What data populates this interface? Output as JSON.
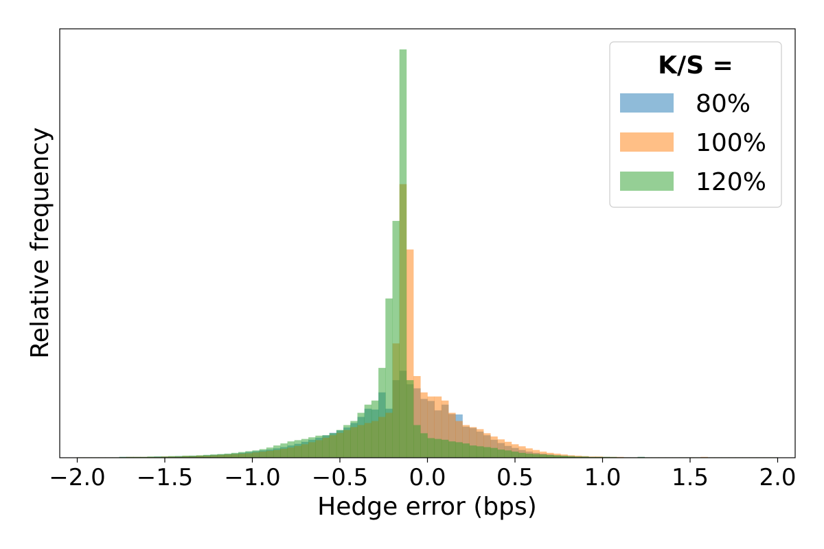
{
  "chart_data": {
    "type": "bar",
    "subtype": "histogram",
    "xlabel": "Hedge error (bps)",
    "ylabel": "Relative frequency",
    "xlim": [
      -2.1,
      2.1
    ],
    "ylim": [
      0,
      1.0
    ],
    "x_ticks": [
      -2.0,
      -1.5,
      -1.0,
      -0.5,
      0.0,
      0.5,
      1.0,
      1.5,
      2.0
    ],
    "x_tick_labels": [
      "−2.0",
      "−1.5",
      "−1.0",
      "−0.5",
      "0.0",
      "0.5",
      "1.0",
      "1.5",
      "2.0"
    ],
    "y_ticks_shown": false,
    "grid": false,
    "bin_width": 0.04,
    "bins_start": -2.0,
    "legend": {
      "title": "K/S =",
      "position": "top-right",
      "entries": [
        "80%",
        "100%",
        "120%"
      ]
    },
    "series": [
      {
        "name": "80%",
        "color": "#1f77b4",
        "opacity": 0.5,
        "values": [
          0.001,
          0.001,
          0.001,
          0.001,
          0.001,
          0.001,
          0.002,
          0.002,
          0.002,
          0.002,
          0.002,
          0.003,
          0.003,
          0.003,
          0.004,
          0.004,
          0.005,
          0.005,
          0.006,
          0.007,
          0.008,
          0.009,
          0.01,
          0.012,
          0.014,
          0.016,
          0.018,
          0.02,
          0.023,
          0.026,
          0.03,
          0.034,
          0.039,
          0.044,
          0.049,
          0.055,
          0.061,
          0.067,
          0.074,
          0.085,
          0.1,
          0.12,
          0.118,
          0.16,
          0.12,
          0.19,
          0.213,
          0.18,
          0.17,
          0.144,
          0.139,
          0.116,
          0.13,
          0.107,
          0.106,
          0.076,
          0.073,
          0.064,
          0.055,
          0.044,
          0.036,
          0.029,
          0.024,
          0.019,
          0.015,
          0.012,
          0.01,
          0.008,
          0.006,
          0.005,
          0.004,
          0.003,
          0.003,
          0.002,
          0.002,
          0.002,
          0.001,
          0.001,
          0.001,
          0.001,
          0.002,
          0.001,
          0.001,
          0.001,
          0.001,
          0.001,
          0.001,
          0.001,
          0.001,
          0.001,
          0.001,
          0.001,
          0.001,
          0.001,
          0.001,
          0.001,
          0.001,
          0.001,
          0.001,
          0.001
        ]
      },
      {
        "name": "100%",
        "color": "#ff7f0e",
        "opacity": 0.5,
        "values": [
          0.001,
          0.001,
          0.001,
          0.001,
          0.001,
          0.001,
          0.001,
          0.002,
          0.002,
          0.002,
          0.002,
          0.002,
          0.003,
          0.003,
          0.003,
          0.004,
          0.004,
          0.005,
          0.005,
          0.006,
          0.007,
          0.008,
          0.009,
          0.01,
          0.011,
          0.013,
          0.015,
          0.017,
          0.019,
          0.022,
          0.025,
          0.029,
          0.033,
          0.038,
          0.043,
          0.049,
          0.055,
          0.061,
          0.068,
          0.075,
          0.08,
          0.085,
          0.09,
          0.1,
          0.11,
          0.28,
          0.67,
          0.51,
          0.2,
          0.16,
          0.15,
          0.15,
          0.14,
          0.11,
          0.09,
          0.08,
          0.075,
          0.07,
          0.06,
          0.052,
          0.045,
          0.039,
          0.033,
          0.028,
          0.023,
          0.019,
          0.015,
          0.012,
          0.01,
          0.008,
          0.006,
          0.005,
          0.004,
          0.003,
          0.003,
          0.002,
          0.002,
          0.002,
          0.001,
          0.001,
          0.001,
          0.001,
          0.001,
          0.001,
          0.001,
          0.001,
          0.001,
          0.001,
          0.001,
          0.002,
          0.001,
          0.001,
          0.001,
          0.001,
          0.001,
          0.001,
          0.001,
          0.001,
          0.001,
          0.001
        ]
      },
      {
        "name": "120%",
        "color": "#2ca02c",
        "opacity": 0.5,
        "values": [
          0.001,
          0.001,
          0.001,
          0.001,
          0.001,
          0.001,
          0.002,
          0.002,
          0.002,
          0.002,
          0.003,
          0.003,
          0.003,
          0.004,
          0.004,
          0.005,
          0.005,
          0.006,
          0.007,
          0.008,
          0.009,
          0.01,
          0.012,
          0.014,
          0.016,
          0.018,
          0.021,
          0.025,
          0.03,
          0.035,
          0.04,
          0.043,
          0.046,
          0.05,
          0.054,
          0.055,
          0.06,
          0.068,
          0.08,
          0.09,
          0.11,
          0.13,
          0.14,
          0.22,
          0.39,
          0.58,
          1.0,
          0.19,
          0.08,
          0.06,
          0.048,
          0.046,
          0.044,
          0.04,
          0.038,
          0.035,
          0.03,
          0.028,
          0.026,
          0.024,
          0.02,
          0.018,
          0.015,
          0.012,
          0.01,
          0.009,
          0.008,
          0.007,
          0.006,
          0.005,
          0.004,
          0.003,
          0.003,
          0.002,
          0.002,
          0.002,
          0.002,
          0.001,
          0.001,
          0.001,
          0.002,
          0.001,
          0.001,
          0.001,
          0.001,
          0.001,
          0.001,
          0.001,
          0.001,
          0.001,
          0.001,
          0.001,
          0.001,
          0.001,
          0.001,
          0.001,
          0.001,
          0.001,
          0.001,
          0.001
        ]
      }
    ]
  }
}
